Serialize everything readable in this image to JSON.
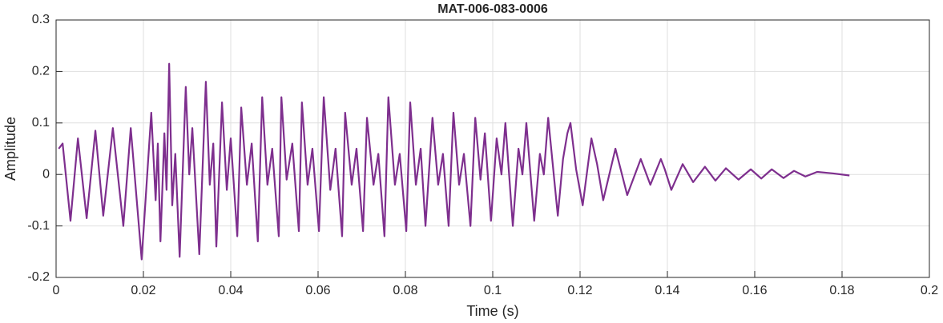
{
  "chart_data": {
    "type": "line",
    "title": "MAT-006-083-0006",
    "x_label": "Time (s)",
    "y_label": "Amplitude",
    "color": "#7e2f8e",
    "grid": true,
    "xlim": [
      0,
      0.2
    ],
    "xticks": [
      0,
      0.02,
      0.04,
      0.06,
      0.08,
      0.1,
      0.12,
      0.14,
      0.16,
      0.18,
      0.2
    ],
    "ylim": [
      -0.2,
      0.3
    ],
    "yticks": [
      -0.2,
      -0.1,
      0,
      0.1,
      0.2,
      0.3
    ],
    "x": [
      0.0006,
      0.0015,
      0.0033,
      0.005,
      0.007,
      0.009,
      0.0108,
      0.013,
      0.0154,
      0.0171,
      0.0196,
      0.0218,
      0.0228,
      0.0233,
      0.0239,
      0.0248,
      0.0253,
      0.0259,
      0.0266,
      0.0273,
      0.0283,
      0.0297,
      0.0305,
      0.0312,
      0.0328,
      0.0343,
      0.0352,
      0.036,
      0.0367,
      0.038,
      0.0391,
      0.04,
      0.0415,
      0.0424,
      0.0437,
      0.0448,
      0.0462,
      0.0472,
      0.0484,
      0.0495,
      0.051,
      0.0516,
      0.0528,
      0.0541,
      0.0556,
      0.0563,
      0.0576,
      0.0587,
      0.0602,
      0.0613,
      0.0628,
      0.064,
      0.0655,
      0.0662,
      0.0677,
      0.0688,
      0.0703,
      0.0712,
      0.0727,
      0.0738,
      0.0752,
      0.0761,
      0.0776,
      0.0787,
      0.0802,
      0.0811,
      0.0824,
      0.0835,
      0.0846,
      0.0862,
      0.0875,
      0.0886,
      0.0899,
      0.091,
      0.0923,
      0.0934,
      0.0949,
      0.096,
      0.0972,
      0.0982,
      0.0996,
      0.1009,
      0.102,
      0.1029,
      0.1046,
      0.1059,
      0.1068,
      0.1077,
      0.1095,
      0.1108,
      0.1117,
      0.1127,
      0.1149,
      0.1161,
      0.1171,
      0.1178,
      0.1191,
      0.1206,
      0.1226,
      0.1239,
      0.1253,
      0.1281,
      0.1308,
      0.1339,
      0.1361,
      0.1385,
      0.1394,
      0.1409,
      0.1435,
      0.1459,
      0.1486,
      0.151,
      0.1534,
      0.1563,
      0.1591,
      0.1615,
      0.1639,
      0.1666,
      0.169,
      0.1716,
      0.1743,
      0.178,
      0.1817
    ],
    "values": [
      0.05,
      0.06,
      -0.09,
      0.07,
      -0.085,
      0.085,
      -0.08,
      0.09,
      -0.1,
      0.09,
      -0.165,
      0.12,
      -0.05,
      0.06,
      -0.13,
      0.08,
      -0.03,
      0.215,
      -0.06,
      0.04,
      -0.16,
      0.17,
      0.0,
      0.09,
      -0.155,
      0.18,
      -0.02,
      0.06,
      -0.14,
      0.14,
      -0.03,
      0.07,
      -0.12,
      0.13,
      -0.02,
      0.06,
      -0.13,
      0.15,
      -0.02,
      0.05,
      -0.12,
      0.15,
      -0.01,
      0.06,
      -0.11,
      0.14,
      -0.02,
      0.05,
      -0.11,
      0.15,
      -0.03,
      0.05,
      -0.12,
      0.12,
      -0.02,
      0.05,
      -0.11,
      0.11,
      -0.02,
      0.04,
      -0.12,
      0.15,
      -0.02,
      0.04,
      -0.11,
      0.14,
      -0.02,
      0.05,
      -0.1,
      0.11,
      -0.02,
      0.04,
      -0.1,
      0.12,
      -0.02,
      0.04,
      -0.1,
      0.11,
      -0.01,
      0.08,
      -0.09,
      0.07,
      0.0,
      0.1,
      -0.1,
      0.05,
      0.0,
      0.1,
      -0.09,
      0.04,
      0.0,
      0.11,
      -0.08,
      0.03,
      0.08,
      0.1,
      0.01,
      -0.06,
      0.07,
      0.02,
      -0.05,
      0.05,
      -0.04,
      0.03,
      -0.02,
      0.03,
      0.01,
      -0.03,
      0.02,
      -0.015,
      0.015,
      -0.012,
      0.012,
      -0.01,
      0.01,
      -0.008,
      0.01,
      -0.007,
      0.007,
      -0.004,
      0.005,
      0.002,
      -0.002
    ]
  }
}
